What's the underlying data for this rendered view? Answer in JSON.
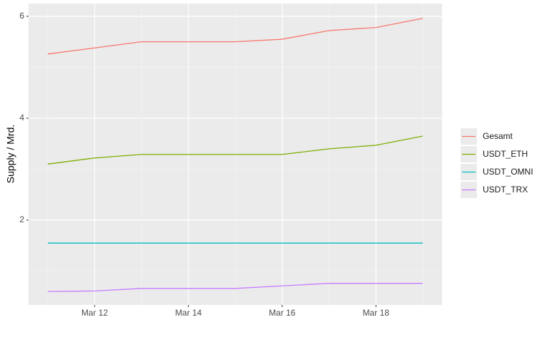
{
  "chart_data": {
    "type": "line",
    "y_label": "Supply / Mrd.",
    "categories": [
      null,
      "Mar 12",
      null,
      "Mar 14",
      null,
      "Mar 16",
      null,
      "Mar 18",
      null
    ],
    "series": [
      {
        "name": "Gesamt",
        "color": "#F8766D",
        "values": [
          5.26,
          5.38,
          5.5,
          5.5,
          5.5,
          5.55,
          5.72,
          5.78,
          5.96
        ]
      },
      {
        "name": "USDT_ETH",
        "color": "#7CAE00",
        "values": [
          3.1,
          3.22,
          3.29,
          3.29,
          3.29,
          3.29,
          3.4,
          3.47,
          3.65
        ]
      },
      {
        "name": "USDT_OMNI",
        "color": "#00BFC4",
        "values": [
          1.55,
          1.55,
          1.55,
          1.55,
          1.55,
          1.55,
          1.55,
          1.55,
          1.55
        ]
      },
      {
        "name": "USDT_TRX",
        "color": "#C77CFF",
        "values": [
          0.6,
          0.61,
          0.66,
          0.66,
          0.66,
          0.71,
          0.76,
          0.76,
          0.76
        ]
      }
    ],
    "ylim": [
      0.336,
      6.25
    ],
    "yticks": [
      2,
      4,
      6
    ],
    "grid": true,
    "legend": "right"
  }
}
